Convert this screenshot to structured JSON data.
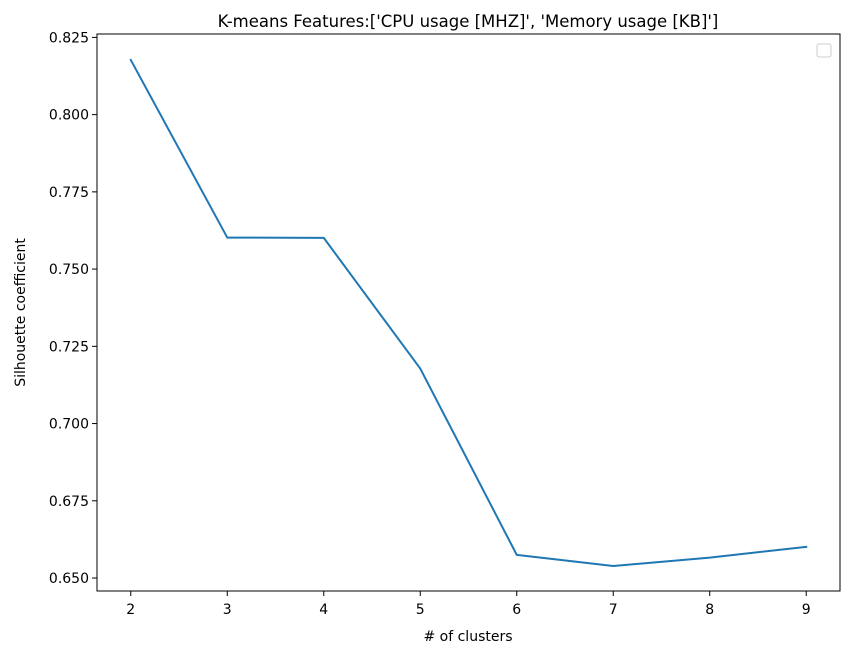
{
  "chart_data": {
    "type": "line",
    "title": "K-means Features:['CPU usage [MHZ]', 'Memory usage [KB]']",
    "xlabel": "# of clusters",
    "ylabel": "Silhouette coefficient",
    "x": [
      2,
      3,
      4,
      5,
      6,
      7,
      8,
      9
    ],
    "series": [
      {
        "values": [
          0.8177,
          0.7602,
          0.7601,
          0.7178,
          0.6575,
          0.6539,
          0.6566,
          0.6601
        ],
        "color": "#1f77b4"
      }
    ],
    "xticks": [
      "2",
      "3",
      "4",
      "5",
      "6",
      "7",
      "8",
      "9"
    ],
    "yticks": [
      "0.650",
      "0.675",
      "0.700",
      "0.725",
      "0.750",
      "0.775",
      "0.800",
      "0.825"
    ],
    "xlim": [
      1.65,
      9.35
    ],
    "ylim": [
      0.6458,
      0.8261
    ],
    "grid": false,
    "legend": {
      "placement": "top-right",
      "entries": []
    }
  }
}
